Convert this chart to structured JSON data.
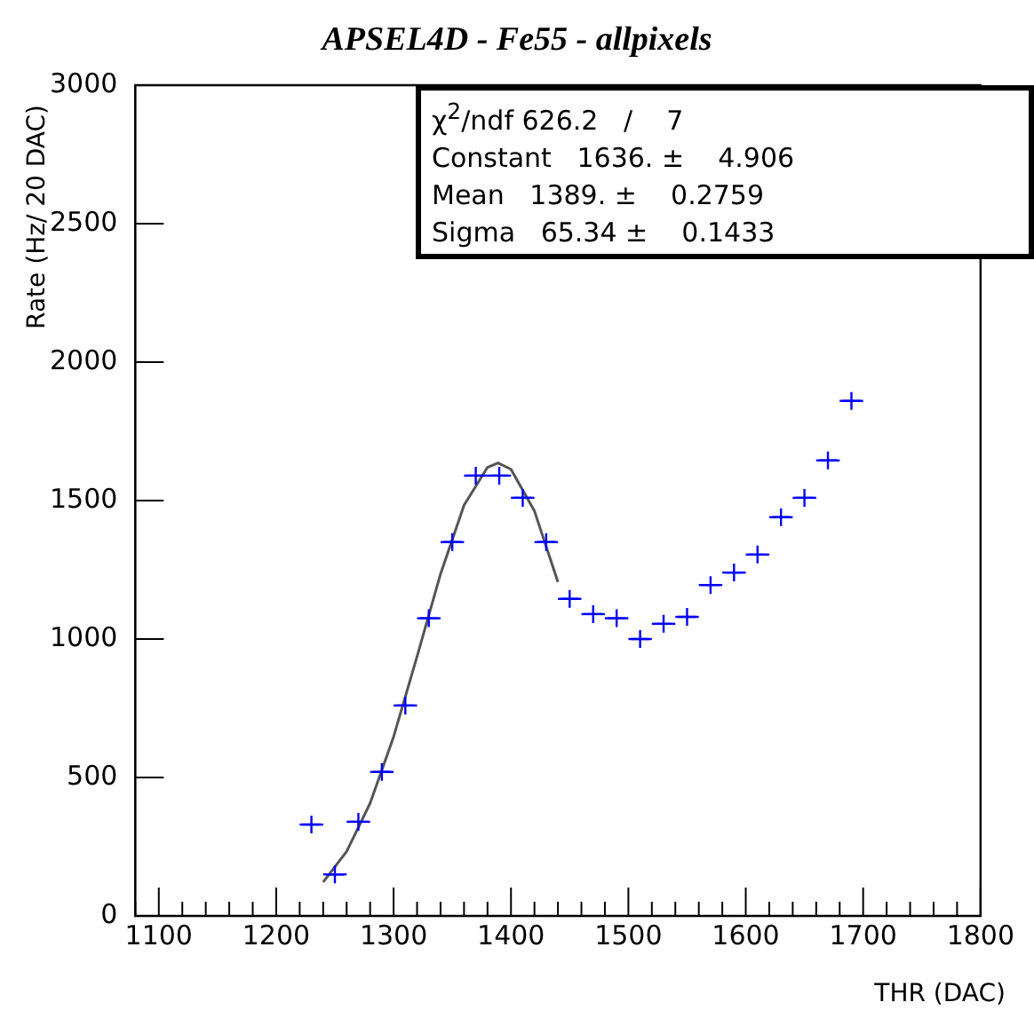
{
  "chart_data": {
    "type": "scatter",
    "title": "APSEL4D - Fe55 - allpixels",
    "xlabel": "THR (DAC)",
    "ylabel": "Rate (Hz/ 20 DAC)",
    "annotations": [
      "χ$^{2}$/ndf 626.2   /    7",
      "Constant   1636. ±    4.906",
      "Mean   1389. ±    0.2759",
      "Sigma   65.34 ±    0.1433"
    ],
    "xlim": [
      1080,
      1800
    ],
    "xticks": [
      1100,
      1200,
      1300,
      1400,
      1500,
      1600,
      1700,
      1800
    ],
    "ylim": [
      0,
      3000
    ],
    "yticks": [
      0,
      500,
      1000,
      1500,
      2000,
      2500,
      3000
    ],
    "grid": false,
    "legend": false,
    "marker": "cross",
    "series": [
      {
        "type": "scatter",
        "color": "#0000ff",
        "x": [
          1230,
          1250,
          1270,
          1290,
          1310,
          1330,
          1350,
          1370,
          1390,
          1410,
          1430,
          1450,
          1470,
          1490,
          1510,
          1530,
          1550,
          1570,
          1590,
          1610,
          1630,
          1650,
          1670,
          1690
        ],
        "values": [
          330,
          150,
          340,
          520,
          760,
          1075,
          1350,
          1590,
          1590,
          1510,
          1350,
          1145,
          1090,
          1075,
          1000,
          1055,
          1080,
          1195,
          1240,
          1305,
          1440,
          1510,
          1645,
          1860
        ],
        "xerrors": [
          10,
          10,
          10,
          10,
          10,
          10,
          10,
          10,
          10,
          10,
          10,
          10,
          10,
          10,
          10,
          10,
          10,
          10,
          10,
          10,
          10,
          10,
          10,
          10
        ]
      },
      {
        "type": "line",
        "color": "#555555",
        "marker": "none",
        "line_style": "solid",
        "x": [
          1240,
          1260,
          1280,
          1300,
          1320,
          1340,
          1360,
          1380,
          1389,
          1400,
          1420,
          1440
        ],
        "values": [
          122,
          233,
          407,
          647,
          937,
          1235,
          1483,
          1620,
          1636,
          1613,
          1462,
          1206
        ]
      }
    ]
  }
}
